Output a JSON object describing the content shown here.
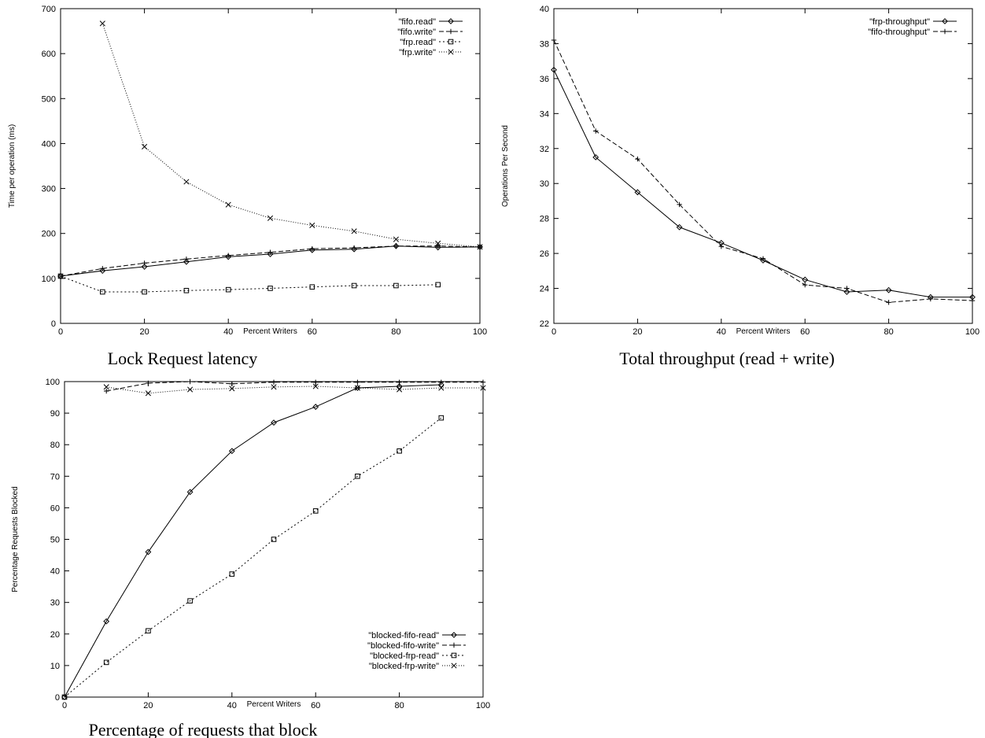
{
  "chart_data": [
    {
      "type": "line",
      "title": "Lock Request latency",
      "xlabel": "Percent Writers",
      "ylabel": "Time per operation (ms)",
      "xlim": [
        0,
        100
      ],
      "ylim": [
        0,
        700
      ],
      "xticks": [
        0,
        20,
        40,
        60,
        80,
        100
      ],
      "yticks": [
        0,
        100,
        200,
        300,
        400,
        500,
        600,
        700
      ],
      "legend_position": "top-right",
      "series": [
        {
          "name": "\"fifo.read\"",
          "marker": "diamond",
          "dash": "",
          "x": [
            0,
            10,
            20,
            30,
            40,
            50,
            60,
            70,
            80,
            90,
            100
          ],
          "y": [
            105,
            117,
            126,
            137,
            148,
            154,
            163,
            165,
            172,
            169,
            170
          ]
        },
        {
          "name": "\"fifo.write\"",
          "marker": "plus",
          "dash": "6,3",
          "x": [
            0,
            10,
            20,
            30,
            40,
            50,
            60,
            70,
            80,
            90,
            100
          ],
          "y": [
            105,
            122,
            134,
            143,
            151,
            158,
            166,
            168,
            172,
            172,
            170
          ]
        },
        {
          "name": "\"frp.read\"",
          "marker": "square",
          "dash": "2,3",
          "x": [
            0,
            10,
            20,
            30,
            40,
            50,
            60,
            70,
            80,
            90
          ],
          "y": [
            105,
            70,
            70,
            73,
            75,
            78,
            81,
            84,
            84,
            86
          ]
        },
        {
          "name": "\"frp.write\"",
          "marker": "cross",
          "dash": "1,2",
          "x": [
            10,
            20,
            30,
            40,
            50,
            60,
            70,
            80,
            90,
            100
          ],
          "y": [
            667,
            393,
            315,
            264,
            234,
            218,
            205,
            187,
            178,
            170
          ]
        }
      ]
    },
    {
      "type": "line",
      "title": "Total throughput (read + write)",
      "xlabel": "Percent Writers",
      "ylabel": "Operations Per Second",
      "xlim": [
        0,
        100
      ],
      "ylim": [
        22,
        40
      ],
      "xticks": [
        0,
        20,
        40,
        60,
        80,
        100
      ],
      "yticks": [
        22,
        24,
        26,
        28,
        30,
        32,
        34,
        36,
        38,
        40
      ],
      "legend_position": "top-right",
      "series": [
        {
          "name": "\"frp-throughput\"",
          "marker": "diamond",
          "dash": "",
          "x": [
            0,
            10,
            20,
            30,
            40,
            50,
            60,
            70,
            80,
            90,
            100
          ],
          "y": [
            36.5,
            31.5,
            29.5,
            27.5,
            26.6,
            25.6,
            24.5,
            23.8,
            23.9,
            23.5,
            23.5
          ]
        },
        {
          "name": "\"fifo-throughput\"",
          "marker": "plus",
          "dash": "6,3",
          "x": [
            0,
            10,
            20,
            30,
            40,
            50,
            60,
            70,
            80,
            90,
            100
          ],
          "y": [
            38.2,
            33.0,
            31.4,
            28.8,
            26.4,
            25.7,
            24.2,
            24.0,
            23.2,
            23.4,
            23.3
          ]
        }
      ]
    },
    {
      "type": "line",
      "title": "Percentage of requests that block",
      "xlabel": "Percent Writers",
      "ylabel": "Percentage Requests Blocked",
      "xlim": [
        0,
        100
      ],
      "ylim": [
        0,
        100
      ],
      "xticks": [
        0,
        20,
        40,
        60,
        80,
        100
      ],
      "yticks": [
        0,
        10,
        20,
        30,
        40,
        50,
        60,
        70,
        80,
        90,
        100
      ],
      "legend_position": "bottom-right",
      "series": [
        {
          "name": "\"blocked-fifo-read\"",
          "marker": "diamond",
          "dash": "",
          "x": [
            0,
            10,
            20,
            30,
            40,
            50,
            60,
            70,
            80,
            90
          ],
          "y": [
            0,
            24,
            46,
            65,
            78,
            87,
            92,
            98,
            98.5,
            99
          ]
        },
        {
          "name": "\"blocked-fifo-write\"",
          "marker": "plus",
          "dash": "6,3",
          "x": [
            10,
            20,
            30,
            40,
            50,
            60,
            70,
            80,
            90,
            100
          ],
          "y": [
            97,
            99.5,
            100,
            99.3,
            99.8,
            99.8,
            99.8,
            99.8,
            99.8,
            99.8
          ]
        },
        {
          "name": "\"blocked-frp-read\"",
          "marker": "square",
          "dash": "2,3",
          "x": [
            0,
            10,
            20,
            30,
            40,
            50,
            60,
            70,
            80,
            90
          ],
          "y": [
            0,
            11,
            21,
            30.5,
            39,
            50,
            59,
            70,
            78,
            88.5
          ]
        },
        {
          "name": "\"blocked-frp-write\"",
          "marker": "cross",
          "dash": "1,2",
          "x": [
            10,
            20,
            30,
            40,
            50,
            60,
            70,
            80,
            90,
            100
          ],
          "y": [
            98.3,
            96.3,
            97.5,
            97.8,
            98.3,
            98.5,
            98,
            97.5,
            98,
            98
          ]
        }
      ]
    }
  ]
}
